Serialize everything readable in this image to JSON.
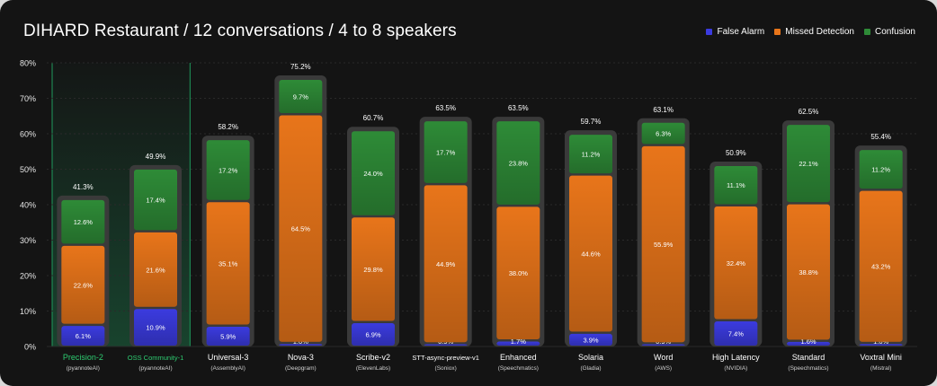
{
  "title": "DIHARD Restaurant / 12 conversations / 4 to 8 speakers",
  "legend": {
    "false_alarm": "False Alarm",
    "missed_detection": "Missed Detection",
    "confusion": "Confusion"
  },
  "colors": {
    "false_alarm": "#3b3bdf",
    "missed_detection": "#e8751a",
    "confusion": "#2e8b37",
    "highlight": "#1f9a5d",
    "highlight_text": "#2ecc71",
    "frame": "#3a3a3a",
    "background": "#141414"
  },
  "chart_data": {
    "type": "bar",
    "stacked": true,
    "title": "DIHARD Restaurant / 12 conversations / 4 to 8 speakers",
    "ylim": [
      0,
      80
    ],
    "yticks": [
      "0%",
      "10%",
      "20%",
      "30%",
      "40%",
      "50%",
      "60%",
      "70%",
      "80%"
    ],
    "grid": true,
    "legend_position": "top-right",
    "categories": [
      "Precision-2",
      "OSS Community-1",
      "Universal-3",
      "Nova-3",
      "Scribe-v2",
      "STT-async-preview-v1",
      "Enhanced",
      "Solaria",
      "Word",
      "High Latency",
      "Standard",
      "Voxtral Mini"
    ],
    "providers": [
      "(pyannoteAI)",
      "(pyannoteAI)",
      "(AssemblyAI)",
      "(Deepgram)",
      "(ElevenLabs)",
      "(Soniox)",
      "(Speechmatics)",
      "(Gladia)",
      "(AWS)",
      "(NVIDIA)",
      "(Speechmatics)",
      "(Mistral)"
    ],
    "highlighted": [
      true,
      true,
      false,
      false,
      false,
      false,
      false,
      false,
      false,
      false,
      false,
      false
    ],
    "totals": [
      41.3,
      49.9,
      58.2,
      75.2,
      60.7,
      63.5,
      63.5,
      59.7,
      63.1,
      50.9,
      62.5,
      55.4
    ],
    "total_labels": [
      "41.3%",
      "49.9%",
      "58.2%",
      "75.2%",
      "60.7%",
      "63.5%",
      "63.5%",
      "59.7%",
      "63.1%",
      "50.9%",
      "62.5%",
      "55.4%"
    ],
    "series": [
      {
        "name": "False Alarm",
        "values": [
          6.1,
          10.9,
          5.9,
          1.0,
          6.9,
          0.9,
          1.7,
          3.9,
          0.9,
          7.4,
          1.6,
          1.0
        ],
        "labels": [
          "6.1%",
          "10.9%",
          "5.9%",
          "1.0%",
          "6.9%",
          "0.9%",
          "1.7%",
          "3.9%",
          "0.9%",
          "7.4%",
          "1.6%",
          "1.0%"
        ]
      },
      {
        "name": "Missed Detection",
        "values": [
          22.6,
          21.6,
          35.1,
          64.5,
          29.8,
          44.9,
          38.0,
          44.6,
          55.9,
          32.4,
          38.8,
          43.2
        ],
        "labels": [
          "22.6%",
          "21.6%",
          "35.1%",
          "64.5%",
          "29.8%",
          "44.9%",
          "38.0%",
          "44.6%",
          "55.9%",
          "32.4%",
          "38.8%",
          "43.2%"
        ]
      },
      {
        "name": "Confusion",
        "values": [
          12.6,
          17.4,
          17.2,
          9.7,
          24.0,
          17.7,
          23.8,
          11.2,
          6.3,
          11.1,
          22.1,
          11.2
        ],
        "labels": [
          "12.6%",
          "17.4%",
          "17.2%",
          "9.7%",
          "24.0%",
          "17.7%",
          "23.8%",
          "11.2%",
          "6.3%",
          "11.1%",
          "22.1%",
          "11.2%"
        ]
      }
    ]
  }
}
